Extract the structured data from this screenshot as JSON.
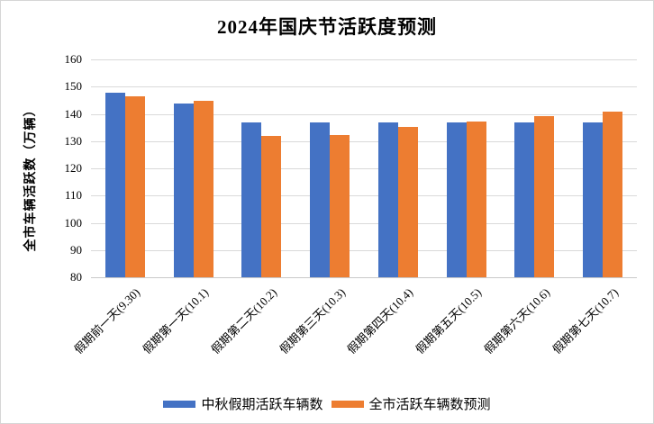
{
  "title": "2024年国庆节活跃度预测",
  "chart_data": {
    "type": "bar",
    "title": "2024年国庆节活跃度预测",
    "xlabel": "",
    "ylabel": "全市车辆活跃数（万辆）",
    "ylim": [
      80,
      160
    ],
    "yticks": [
      80,
      90,
      100,
      110,
      120,
      130,
      140,
      150,
      160
    ],
    "grid": true,
    "legend_position": "bottom",
    "categories": [
      "假期前一天(9.30)",
      "假期第一天(10.1)",
      "假期第二天(10.2)",
      "假期第三天(10.3)",
      "假期第四天(10.4)",
      "假期第五天(10.5)",
      "假期第六天(10.6)",
      "假期第七天(10.7)"
    ],
    "series": [
      {
        "name": "中秋假期活跃车辆数",
        "color": "#4472C4",
        "values": [
          147.8,
          143.8,
          136.7,
          136.7,
          136.7,
          136.7,
          136.7,
          136.7
        ]
      },
      {
        "name": "全市活跃车辆数预测",
        "color": "#ED7D31",
        "values": [
          146.5,
          144.9,
          131.9,
          132.1,
          135.2,
          137.3,
          139.1,
          140.9
        ]
      }
    ]
  },
  "colors": {
    "gridline": "#D9D9D9",
    "axis_line": "#C9C9C9",
    "text": "#000000",
    "background": "#FFFFFF",
    "border": "#D6D6D6"
  }
}
